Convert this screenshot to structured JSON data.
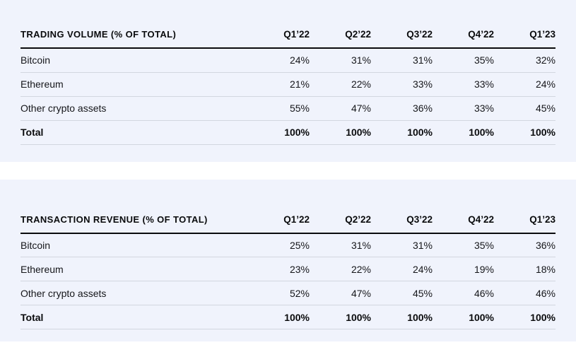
{
  "page": {
    "background_color": "#ffffff",
    "panel_background_color": "#f0f3fc",
    "text_color": "#0a0b0d",
    "divider_color": "#d2d6df",
    "header_rule_color": "#0a0b0d"
  },
  "chart_data": [
    {
      "type": "table",
      "title": "TRADING VOLUME (% OF TOTAL)",
      "columns": [
        "Q1’22",
        "Q2’22",
        "Q3’22",
        "Q4’22",
        "Q1’23"
      ],
      "rows": [
        {
          "label": "Bitcoin",
          "values": [
            "24%",
            "31%",
            "31%",
            "35%",
            "32%"
          ],
          "bold": false
        },
        {
          "label": "Ethereum",
          "values": [
            "21%",
            "22%",
            "33%",
            "33%",
            "24%"
          ],
          "bold": false
        },
        {
          "label": "Other crypto assets",
          "values": [
            "55%",
            "47%",
            "36%",
            "33%",
            "45%"
          ],
          "bold": false
        },
        {
          "label": "Total",
          "values": [
            "100%",
            "100%",
            "100%",
            "100%",
            "100%"
          ],
          "bold": true
        }
      ]
    },
    {
      "type": "table",
      "title": "TRANSACTION REVENUE (% OF TOTAL)",
      "columns": [
        "Q1’22",
        "Q2’22",
        "Q3’22",
        "Q4’22",
        "Q1’23"
      ],
      "rows": [
        {
          "label": "Bitcoin",
          "values": [
            "25%",
            "31%",
            "31%",
            "35%",
            "36%"
          ],
          "bold": false
        },
        {
          "label": "Ethereum",
          "values": [
            "23%",
            "22%",
            "24%",
            "19%",
            "18%"
          ],
          "bold": false
        },
        {
          "label": "Other crypto assets",
          "values": [
            "52%",
            "47%",
            "45%",
            "46%",
            "46%"
          ],
          "bold": false
        },
        {
          "label": "Total",
          "values": [
            "100%",
            "100%",
            "100%",
            "100%",
            "100%"
          ],
          "bold": true
        }
      ]
    }
  ]
}
